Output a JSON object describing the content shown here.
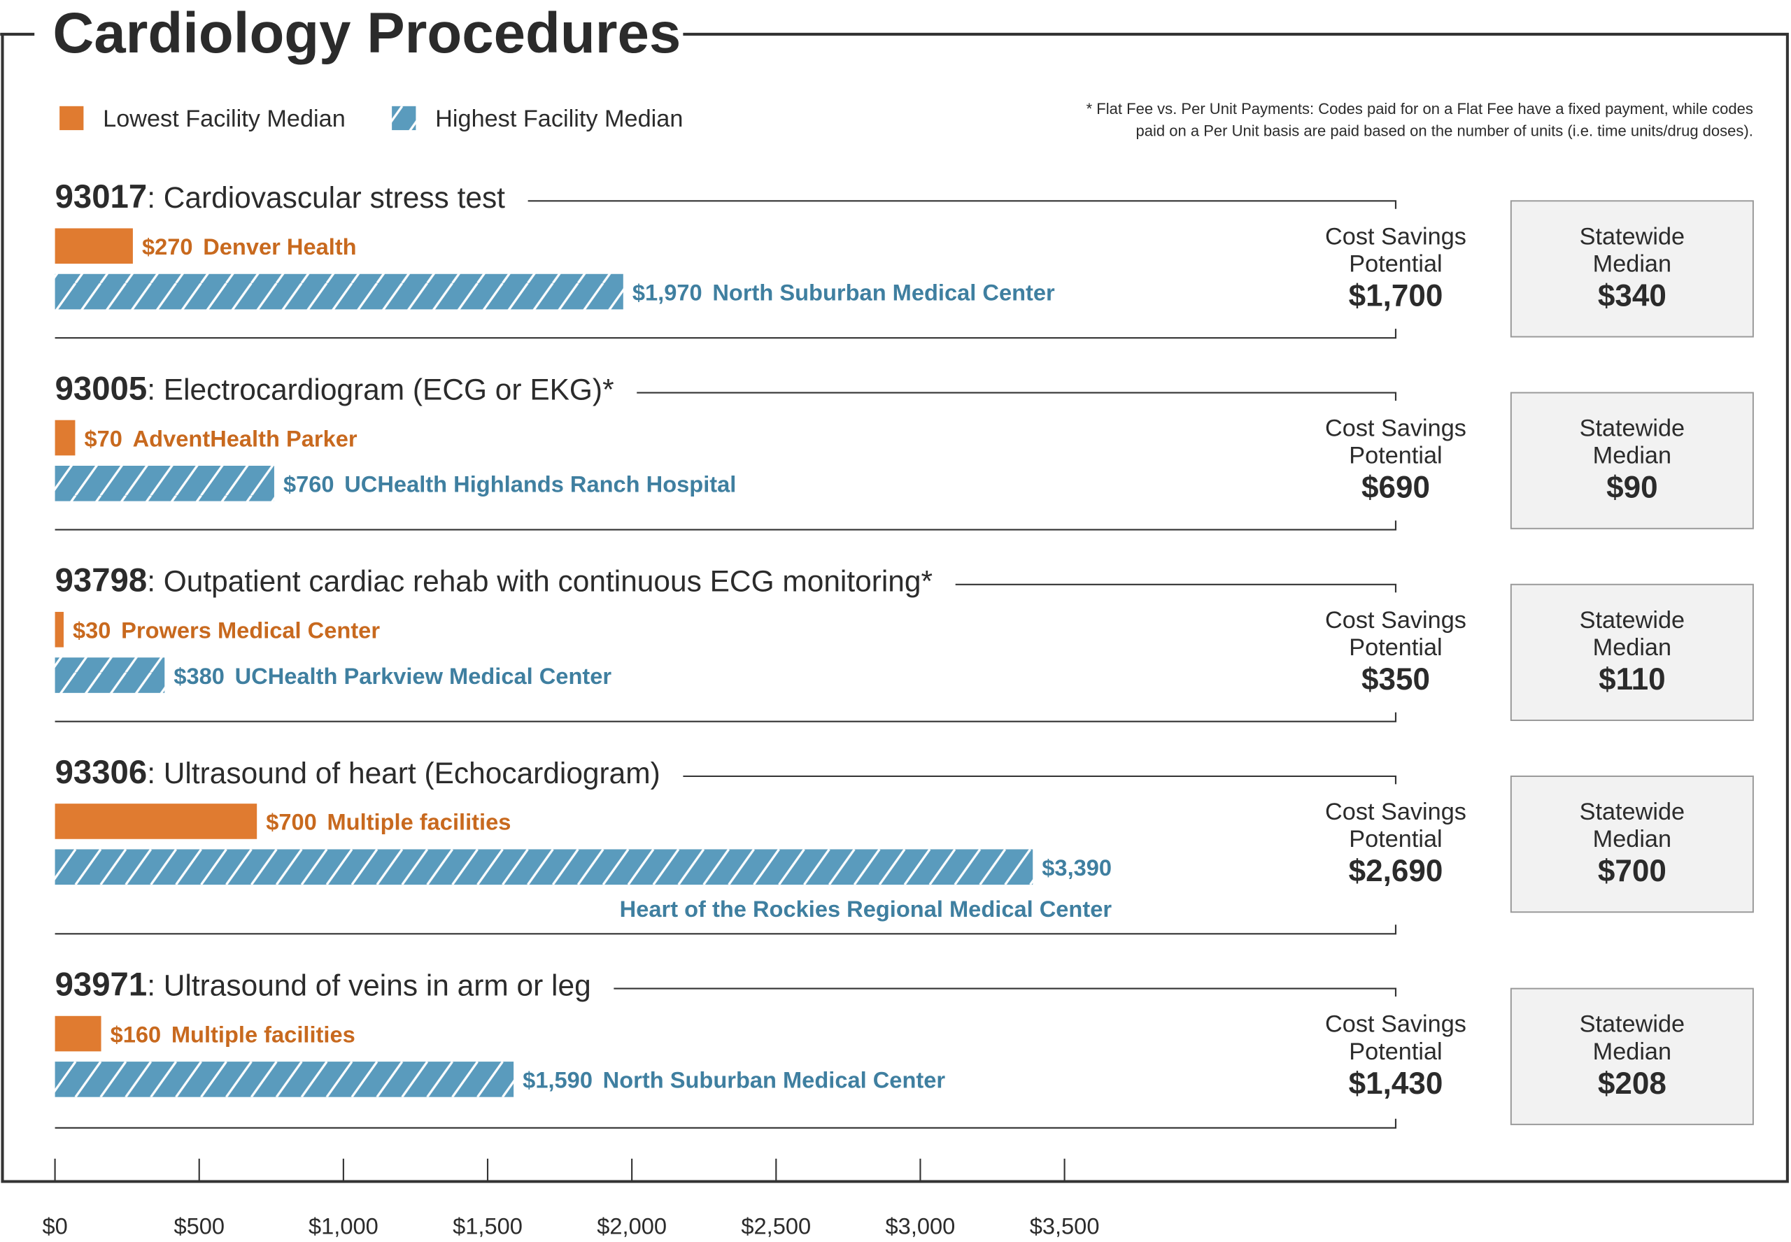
{
  "chart_data": {
    "type": "bar",
    "title": "Cardiology Procedures",
    "footnote": [
      "* Flat Fee vs. Per Unit Payments: Codes paid for on a Flat Fee have a fixed payment, while codes",
      "paid on a Per Unit basis are paid based on the number of units (i.e. time units/drug doses)."
    ],
    "codes": [
      "93017",
      "93005",
      "93798",
      "93306",
      "93971"
    ],
    "categories": [
      ": Cardiovascular stress test",
      ": Electrocardiogram (ECG or EKG)*",
      ": Outpatient cardiac rehab with continuous ECG monitoring*",
      ": Ultrasound of heart (Echocardiogram)",
      ": Ultrasound of veins in arm or leg"
    ],
    "series": [
      {
        "name": "Lowest Facility Median",
        "color": "#e07b30",
        "label_color": "#c8691e",
        "values": [
          270,
          70,
          30,
          700,
          160
        ],
        "value_labels": [
          "$270",
          "$70",
          "$30",
          "$700",
          "$160"
        ],
        "facilities": [
          "Denver Health",
          "AdventHealth Parker",
          "Prowers Medical Center",
          "Multiple facilities",
          "Multiple facilities"
        ]
      },
      {
        "name": "Highest Facility Median",
        "color": "#5a9bbd",
        "label_color": "#3f7fa0",
        "hatched": true,
        "values": [
          1970,
          760,
          380,
          3390,
          1590
        ],
        "value_labels": [
          "$1,970",
          "$760",
          "$380",
          "$3,390",
          "$1,590"
        ],
        "facilities": [
          "North Suburban Medical Center",
          "UCHealth Highlands Ranch Hospital",
          "UCHealth Parkview Medical Center",
          "Heart of the Rockies Regional Medical Center",
          "North Suburban Medical Center"
        ]
      }
    ],
    "savings_title": [
      "Cost Savings",
      "Potential"
    ],
    "savings": [
      {
        "value": 1700,
        "label": "$1,700"
      },
      {
        "value": 690,
        "label": "$690"
      },
      {
        "value": 350,
        "label": "$350"
      },
      {
        "value": 2690,
        "label": "$2,690"
      },
      {
        "value": 1430,
        "label": "$1,430"
      }
    ],
    "statewide_title": [
      "Statewide",
      "Median"
    ],
    "statewide": [
      {
        "value": 340,
        "label": "$340"
      },
      {
        "value": 90,
        "label": "$90"
      },
      {
        "value": 110,
        "label": "$110"
      },
      {
        "value": 700,
        "label": "$700"
      },
      {
        "value": 208,
        "label": "$208"
      }
    ],
    "xlim": [
      0,
      3500
    ],
    "xticks": [
      {
        "value": 0,
        "label": "$0"
      },
      {
        "value": 500,
        "label": "$500"
      },
      {
        "value": 1000,
        "label": "$1,000"
      },
      {
        "value": 1500,
        "label": "$1,500"
      },
      {
        "value": 2000,
        "label": "$2,000"
      },
      {
        "value": 2500,
        "label": "$2,500"
      },
      {
        "value": 3000,
        "label": "$3,000"
      },
      {
        "value": 3500,
        "label": "$3,500"
      }
    ]
  }
}
